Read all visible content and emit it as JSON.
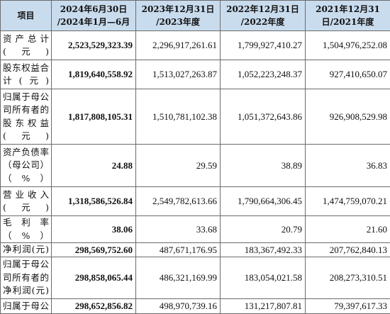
{
  "table": {
    "header": {
      "item": "项目",
      "cols": [
        [
          "2024年6月30日",
          "/2024年1月—6月"
        ],
        [
          "2023年12月31日",
          "/2023年度"
        ],
        [
          "2022年12月31日",
          "/2022年度"
        ],
        [
          "2021年12月31",
          "日/2021年度"
        ]
      ]
    },
    "rows": [
      {
        "label": [
          "资 产 总 计",
          "(元)"
        ],
        "values": [
          "2,523,529,323.39",
          "2,296,917,261.61",
          "1,799,927,410.27",
          "1,504,976,252.08"
        ]
      },
      {
        "label": [
          "股东权益合",
          "计(元)"
        ],
        "values": [
          "1,819,640,558.92",
          "1,513,027,263.87",
          "1,052,223,248.37",
          "927,410,650.07"
        ]
      },
      {
        "label": [
          "归属于母公",
          "司所有者的",
          "股 东 权 益",
          "(元)"
        ],
        "values": [
          "1,817,808,105.31",
          "1,510,781,102.38",
          "1,051,372,643.86",
          "926,908,529.98"
        ]
      },
      {
        "label": [
          "资产负债率",
          "（母公司）",
          "（%）"
        ],
        "values": [
          "24.88",
          "29.59",
          "38.89",
          "36.83"
        ]
      },
      {
        "label": [
          "营 业 收 入",
          "(元)"
        ],
        "values": [
          "1,318,586,526.84",
          "2,549,782,613.66",
          "1,790,664,306.45",
          "1,474,759,070.21"
        ]
      },
      {
        "label": [
          "毛利率（%）"
        ],
        "values": [
          "38.06",
          "33.68",
          "20.79",
          "21.60"
        ]
      },
      {
        "label": [
          "净利润(元)"
        ],
        "values": [
          "298,569,752.60",
          "487,671,176.95",
          "183,367,492.33",
          "207,762,840.13"
        ]
      },
      {
        "label": [
          "归属于母公",
          "司所有者的",
          "净利润(元)"
        ],
        "values": [
          "298,858,065.44",
          "486,321,169.99",
          "183,054,021.58",
          "208,273,310.51"
        ]
      },
      {
        "label": [
          "归属于母公"
        ],
        "values": [
          "298,652,856.82",
          "498,970,739.16",
          "131,217,807.81",
          "79,397,617.33"
        ]
      }
    ]
  }
}
